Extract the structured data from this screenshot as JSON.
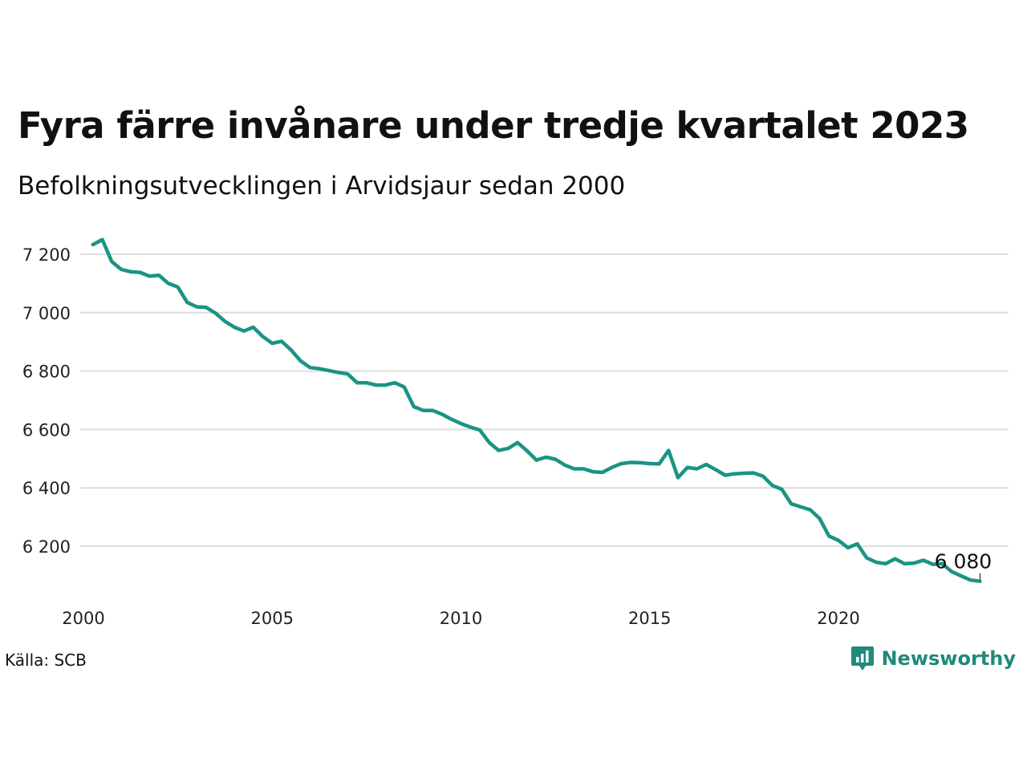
{
  "header": {
    "title": "Fyra färre invånare under tredje kvartalet 2023",
    "subtitle": "Befolkningsutvecklingen i Arvidsjaur sedan 2000"
  },
  "footer": {
    "source": "Källa: SCB",
    "brand": "Newsworthy"
  },
  "colors": {
    "line": "#1a9484",
    "brand": "#1f8a7a",
    "grid": "#dddddd"
  },
  "chart_data": {
    "type": "line",
    "title": "Fyra färre invånare under tredje kvartalet 2023",
    "subtitle": "Befolkningsutvecklingen i Arvidsjaur sedan 2000",
    "xlabel": "",
    "ylabel": "",
    "xlim": [
      2000,
      2024.5
    ],
    "ylim": [
      6010,
      7300
    ],
    "x_ticks": [
      2000,
      2005,
      2010,
      2015,
      2020
    ],
    "x_tick_labels": [
      "2000",
      "2005",
      "2010",
      "2015",
      "2020"
    ],
    "y_ticks": [
      6200,
      6400,
      6600,
      6800,
      7000,
      7200
    ],
    "y_tick_labels": [
      "6 200",
      "6 400",
      "6 600",
      "6 800",
      "7 000",
      "7 200"
    ],
    "grid": true,
    "end_label": "6 080",
    "series": [
      {
        "x": [
          2000.25,
          2000.5,
          2000.75,
          2001,
          2001.25,
          2001.5,
          2001.75,
          2002,
          2002.25,
          2002.5,
          2002.75,
          2003,
          2003.25,
          2003.5,
          2003.75,
          2004,
          2004.25,
          2004.5,
          2004.75,
          2005,
          2005.25,
          2005.5,
          2005.75,
          2006,
          2006.25,
          2006.5,
          2006.75,
          2007,
          2007.25,
          2007.5,
          2007.75,
          2008,
          2008.25,
          2008.5,
          2008.75,
          2009,
          2009.25,
          2009.5,
          2009.75,
          2010,
          2010.25,
          2010.5,
          2010.75,
          2011,
          2011.25,
          2011.5,
          2011.75,
          2012,
          2012.25,
          2012.5,
          2012.75,
          2013,
          2013.25,
          2013.5,
          2013.75,
          2014,
          2014.25,
          2014.5,
          2014.75,
          2015,
          2015.25,
          2015.5,
          2015.75,
          2016,
          2016.25,
          2016.5,
          2016.75,
          2017,
          2017.25,
          2017.5,
          2017.75,
          2018,
          2018.25,
          2018.5,
          2018.75,
          2019,
          2019.25,
          2019.5,
          2019.75,
          2020,
          2020.25,
          2020.5,
          2020.75,
          2021,
          2021.25,
          2021.5,
          2021.75,
          2022,
          2022.25,
          2022.5,
          2022.75,
          2023,
          2023.25,
          2023.5,
          2023.75
        ],
        "values": [
          7233,
          7250,
          7175,
          7148,
          7140,
          7138,
          7125,
          7128,
          7100,
          7088,
          7035,
          7020,
          7018,
          6998,
          6970,
          6950,
          6937,
          6950,
          6918,
          6895,
          6902,
          6872,
          6835,
          6812,
          6808,
          6802,
          6795,
          6790,
          6760,
          6760,
          6752,
          6752,
          6760,
          6745,
          6678,
          6665,
          6665,
          6652,
          6635,
          6620,
          6608,
          6598,
          6555,
          6528,
          6535,
          6555,
          6527,
          6495,
          6505,
          6498,
          6478,
          6465,
          6465,
          6455,
          6453,
          6470,
          6483,
          6487,
          6486,
          6483,
          6482,
          6528,
          6435,
          6470,
          6465,
          6480,
          6462,
          6443,
          6448,
          6450,
          6451,
          6440,
          6408,
          6395,
          6345,
          6335,
          6325,
          6295,
          6235,
          6220,
          6195,
          6208,
          6160,
          6145,
          6140,
          6157,
          6140,
          6142,
          6152,
          6138,
          6140,
          6113,
          6098,
          6084,
          6080
        ]
      }
    ]
  }
}
